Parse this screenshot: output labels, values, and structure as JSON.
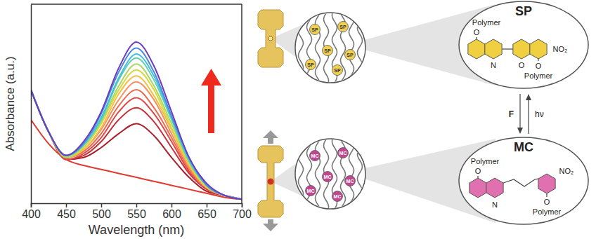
{
  "chart_data": {
    "type": "line",
    "x_label": "Wavelength (nm)",
    "y_label": "Absorbance (a.u.)",
    "x": [
      400,
      425,
      450,
      475,
      500,
      525,
      550,
      575,
      600,
      625,
      650,
      675,
      700
    ],
    "xlim": [
      400,
      700
    ],
    "xticks": [
      400,
      450,
      500,
      550,
      600,
      650,
      700
    ],
    "ylim": [
      0,
      1
    ],
    "tick_labels": "x",
    "line_style": "solid",
    "series": [
      {
        "color": "#e03a30",
        "values": [
          0.42,
          0.3,
          0.22,
          0.19,
          0.17,
          0.15,
          0.13,
          0.11,
          0.09,
          0.07,
          0.05,
          0.03,
          0.02
        ]
      },
      {
        "color": "#a8202a",
        "values": [
          0.57,
          0.36,
          0.22,
          0.23,
          0.28,
          0.35,
          0.4,
          0.34,
          0.23,
          0.13,
          0.06,
          0.04,
          0.02
        ]
      },
      {
        "color": "#c83038",
        "values": [
          0.57,
          0.36,
          0.22,
          0.24,
          0.31,
          0.42,
          0.48,
          0.41,
          0.28,
          0.15,
          0.07,
          0.04,
          0.02
        ]
      },
      {
        "color": "#e04848",
        "values": [
          0.57,
          0.36,
          0.22,
          0.25,
          0.33,
          0.46,
          0.53,
          0.45,
          0.31,
          0.16,
          0.07,
          0.04,
          0.02
        ]
      },
      {
        "color": "#f06a50",
        "values": [
          0.57,
          0.36,
          0.23,
          0.26,
          0.35,
          0.49,
          0.57,
          0.48,
          0.33,
          0.17,
          0.08,
          0.04,
          0.02
        ]
      },
      {
        "color": "#f59060",
        "values": [
          0.57,
          0.36,
          0.23,
          0.27,
          0.37,
          0.52,
          0.61,
          0.52,
          0.35,
          0.18,
          0.08,
          0.04,
          0.02
        ]
      },
      {
        "color": "#f5c040",
        "values": [
          0.57,
          0.36,
          0.23,
          0.27,
          0.38,
          0.55,
          0.64,
          0.54,
          0.37,
          0.19,
          0.08,
          0.04,
          0.02
        ]
      },
      {
        "color": "#d8d840",
        "values": [
          0.57,
          0.36,
          0.23,
          0.28,
          0.4,
          0.57,
          0.67,
          0.57,
          0.38,
          0.2,
          0.08,
          0.04,
          0.02
        ]
      },
      {
        "color": "#a8d860",
        "values": [
          0.57,
          0.36,
          0.23,
          0.29,
          0.41,
          0.59,
          0.7,
          0.59,
          0.4,
          0.21,
          0.09,
          0.04,
          0.02
        ]
      },
      {
        "color": "#60d0b0",
        "values": [
          0.57,
          0.36,
          0.24,
          0.29,
          0.42,
          0.62,
          0.73,
          0.62,
          0.42,
          0.21,
          0.09,
          0.04,
          0.02
        ]
      },
      {
        "color": "#40c0e0",
        "values": [
          0.57,
          0.36,
          0.24,
          0.3,
          0.43,
          0.63,
          0.75,
          0.64,
          0.43,
          0.22,
          0.09,
          0.04,
          0.02
        ]
      },
      {
        "color": "#5088e0",
        "values": [
          0.57,
          0.36,
          0.24,
          0.3,
          0.45,
          0.66,
          0.78,
          0.66,
          0.44,
          0.23,
          0.09,
          0.04,
          0.02
        ]
      },
      {
        "color": "#6a3cc0",
        "values": [
          0.57,
          0.36,
          0.24,
          0.31,
          0.46,
          0.68,
          0.81,
          0.69,
          0.46,
          0.23,
          0.1,
          0.04,
          0.02
        ]
      }
    ]
  },
  "diagram": {
    "states": [
      {
        "name": "SP",
        "bead_label": "SP",
        "groups": [
          "Polymer",
          "O",
          "N",
          "O",
          "O",
          "Polymer",
          "NO₂"
        ]
      },
      {
        "name": "MC",
        "bead_label": "MC",
        "groups": [
          "Polymer",
          "O",
          "N",
          "O",
          "Polymer",
          "NO₂"
        ]
      }
    ],
    "forward_label": "hν",
    "reverse_label": "F"
  }
}
